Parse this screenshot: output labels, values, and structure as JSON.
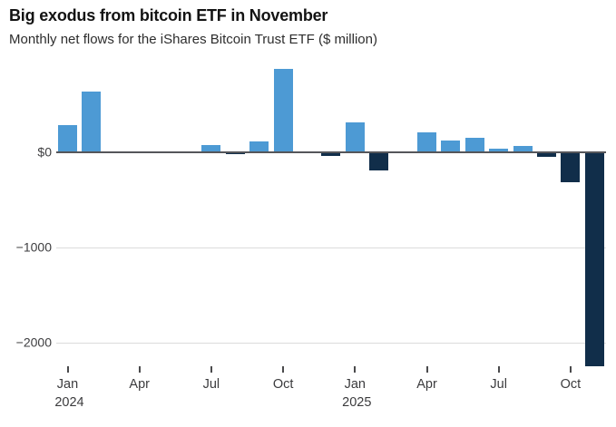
{
  "chart_data": {
    "type": "bar",
    "title": "Big exodus from bitcoin ETF in November",
    "subtitle": "Monthly net flows for the iShares Bitcoin Trust ETF ($ million)",
    "unit": "$ million",
    "categories": [
      "Jan 2024",
      "Feb 2024",
      "Mar 2024",
      "Apr 2024",
      "May 2024",
      "Jun 2024",
      "Jul 2024",
      "Aug 2024",
      "Sep 2024",
      "Oct 2024",
      "Nov 2024",
      "Dec 2024",
      "Jan 2025",
      "Feb 2025",
      "Mar 2025",
      "Apr 2025",
      "May 2025",
      "Jun 2025",
      "Jul 2025",
      "Aug 2025",
      "Sep 2025",
      "Oct 2025",
      "Nov 2025"
    ],
    "values": [
      290,
      640,
      0,
      0,
      0,
      0,
      80,
      -20,
      110,
      875,
      0,
      -40,
      310,
      -190,
      0,
      210,
      120,
      150,
      35,
      65,
      -50,
      -310,
      -2250
    ],
    "ylim": [
      -2300,
      900
    ],
    "y_axis_ticks": [
      {
        "label": "$0",
        "value": 0
      },
      {
        "label": "−1000",
        "value": -1000
      },
      {
        "label": "−2000",
        "value": -2000
      }
    ],
    "x_axis_ticks": [
      {
        "label": "Jan",
        "year": "2024",
        "index": 0
      },
      {
        "label": "Apr",
        "year": "",
        "index": 3
      },
      {
        "label": "Jul",
        "year": "",
        "index": 6
      },
      {
        "label": "Oct",
        "year": "",
        "index": 9
      },
      {
        "label": "Jan",
        "year": "2025",
        "index": 12
      },
      {
        "label": "Apr",
        "year": "",
        "index": 15
      },
      {
        "label": "Jul",
        "year": "",
        "index": 18
      },
      {
        "label": "Oct",
        "year": "",
        "index": 21
      }
    ],
    "colors": {
      "positive_bar": "#4D9AD4",
      "negative_bar": "#112E4A",
      "axis_line": "#55565A",
      "gridline": "#DCDCDC",
      "label_text": "#3E3E40"
    },
    "grid": "horizontal gridlines in negative region only",
    "legend": "none"
  }
}
